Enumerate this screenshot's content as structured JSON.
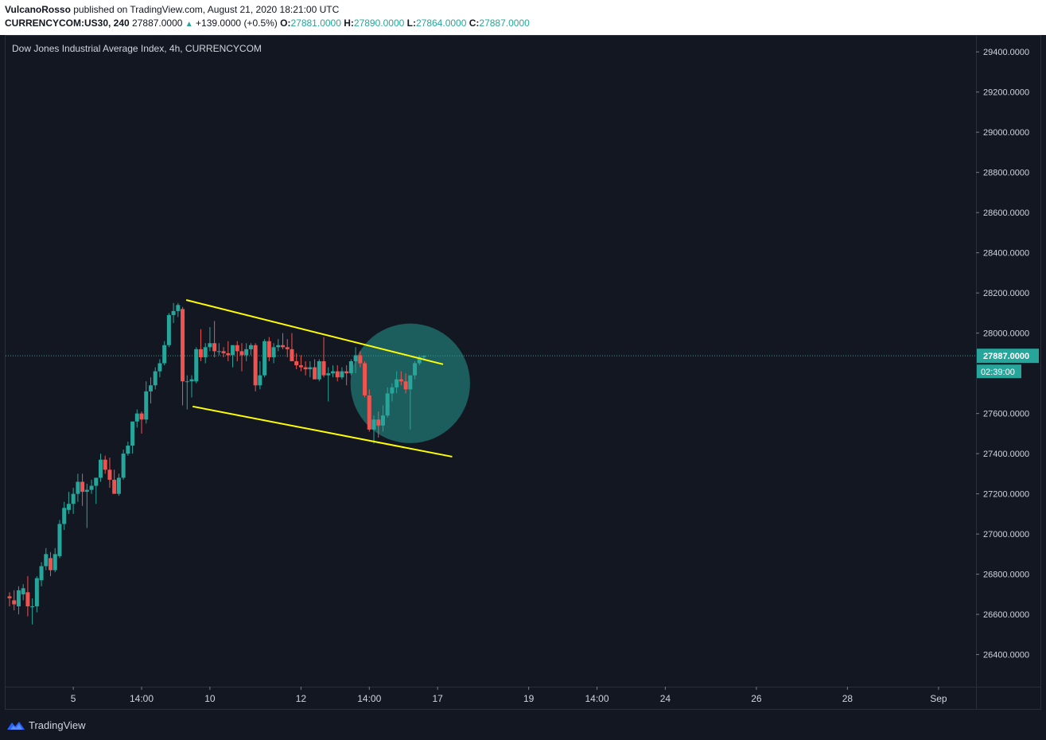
{
  "header": {
    "author": "VulcanoRosso",
    "published_text": "published on TradingView.com, August 21, 2020 18:21:00 UTC",
    "symbol_interval": "CURRENCYCOM:US30, 240",
    "last_value": "27887.0000",
    "change": "+139.0000 (+0.5%)",
    "o_label": "O:",
    "o_value": "27881.0000",
    "h_label": "H:",
    "h_value": "27890.0000",
    "l_label": "L:",
    "l_value": "27864.0000",
    "c_label": "C:",
    "c_value": "27887.0000"
  },
  "footer": {
    "brand": "TradingView"
  },
  "colors": {
    "background": "#131722",
    "up": "#26a69a",
    "down": "#ef5350",
    "trendline": "#ffff00",
    "highlight": "#26a69a",
    "price_line": "#26a69a"
  },
  "chart_data": {
    "type": "candlestick",
    "title": "Dow Jones Industrial Average Index, 4h, CURRENCYCOM",
    "interval": "4h",
    "ylim": [
      26240,
      29480
    ],
    "y_ticks": [
      26400,
      26600,
      26800,
      27000,
      27200,
      27400,
      27600,
      27800,
      28000,
      28200,
      28400,
      28600,
      28800,
      29000,
      29200,
      29400
    ],
    "y_tick_labels": [
      "26400.0000",
      "26600.0000",
      "26800.0000",
      "27000.0000",
      "27200.0000",
      "27400.0000",
      "27600.0000",
      "",
      "28000.0000",
      "28200.0000",
      "28400.0000",
      "28600.0000",
      "28800.0000",
      "29000.0000",
      "29200.0000",
      "29400.0000"
    ],
    "x_tick_labels": [
      {
        "bar": 14,
        "label": "5"
      },
      {
        "bar": 29,
        "label": "14:00"
      },
      {
        "bar": 44,
        "label": "10"
      },
      {
        "bar": 64,
        "label": "12"
      },
      {
        "bar": 79,
        "label": "14:00"
      },
      {
        "bar": 94,
        "label": "17"
      },
      {
        "bar": 114,
        "label": "19"
      },
      {
        "bar": 129,
        "label": "14:00"
      },
      {
        "bar": 144,
        "label": "24"
      },
      {
        "bar": 164,
        "label": "26"
      },
      {
        "bar": 184,
        "label": "28"
      },
      {
        "bar": 204,
        "label": "Sep"
      }
    ],
    "last_price": 27887.0,
    "last_price_label": "27887.0000",
    "countdown_label": "02:39:00",
    "candles": [
      [
        26690,
        26710,
        26640,
        26680
      ],
      [
        26670,
        26720,
        26620,
        26650
      ],
      [
        26640,
        26740,
        26600,
        26720
      ],
      [
        26700,
        26750,
        26670,
        26730
      ],
      [
        26710,
        26790,
        26590,
        26640
      ],
      [
        26640,
        26680,
        26550,
        26640
      ],
      [
        26640,
        26790,
        26610,
        26780
      ],
      [
        26770,
        26860,
        26740,
        26840
      ],
      [
        26840,
        26930,
        26820,
        26900
      ],
      [
        26880,
        26910,
        26790,
        26820
      ],
      [
        26820,
        26930,
        26810,
        26900
      ],
      [
        26890,
        27070,
        26880,
        27050
      ],
      [
        27050,
        27160,
        27020,
        27130
      ],
      [
        27120,
        27210,
        27100,
        27150
      ],
      [
        27150,
        27230,
        27100,
        27200
      ],
      [
        27200,
        27300,
        27160,
        27260
      ],
      [
        27260,
        27300,
        27140,
        27210
      ],
      [
        27210,
        27250,
        27030,
        27220
      ],
      [
        27220,
        27270,
        27200,
        27240
      ],
      [
        27240,
        27260,
        27150,
        27280
      ],
      [
        27280,
        27400,
        27260,
        27370
      ],
      [
        27370,
        27390,
        27300,
        27320
      ],
      [
        27320,
        27380,
        27230,
        27270
      ],
      [
        27270,
        27320,
        27210,
        27200
      ],
      [
        27200,
        27300,
        27190,
        27280
      ],
      [
        27280,
        27420,
        27270,
        27400
      ],
      [
        27400,
        27460,
        27390,
        27440
      ],
      [
        27440,
        27560,
        27400,
        27560
      ],
      [
        27560,
        27620,
        27530,
        27600
      ],
      [
        27600,
        27610,
        27500,
        27570
      ],
      [
        27570,
        27760,
        27550,
        27710
      ],
      [
        27710,
        27780,
        27650,
        27740
      ],
      [
        27740,
        27830,
        27720,
        27810
      ],
      [
        27810,
        27870,
        27780,
        27850
      ],
      [
        27850,
        27960,
        27840,
        27940
      ],
      [
        27940,
        28100,
        27930,
        28090
      ],
      [
        28090,
        28150,
        28050,
        28110
      ],
      [
        28110,
        28150,
        28080,
        28140
      ],
      [
        28120,
        28130,
        27640,
        27760
      ],
      [
        27760,
        27790,
        27620,
        27760
      ],
      [
        27760,
        27790,
        27680,
        27770
      ],
      [
        27760,
        27930,
        27750,
        27920
      ],
      [
        27920,
        28020,
        27860,
        27880
      ],
      [
        27880,
        27950,
        27850,
        27930
      ],
      [
        27930,
        28030,
        27910,
        27950
      ],
      [
        27950,
        28060,
        27880,
        27910
      ],
      [
        27910,
        27950,
        27890,
        27910
      ],
      [
        27910,
        27930,
        27880,
        27900
      ],
      [
        27900,
        27960,
        27860,
        27890
      ],
      [
        27890,
        27940,
        27830,
        27940
      ],
      [
        27940,
        27960,
        27860,
        27910
      ],
      [
        27910,
        27950,
        27810,
        27890
      ],
      [
        27890,
        27950,
        27860,
        27920
      ],
      [
        27920,
        27950,
        27890,
        27940
      ],
      [
        27940,
        27950,
        27710,
        27740
      ],
      [
        27740,
        27860,
        27720,
        27790
      ],
      [
        27790,
        27970,
        27780,
        27960
      ],
      [
        27960,
        27980,
        27860,
        27880
      ],
      [
        27880,
        27950,
        27850,
        27930
      ],
      [
        27930,
        27970,
        27910,
        27940
      ],
      [
        27940,
        28000,
        27920,
        27930
      ],
      [
        27930,
        27970,
        27880,
        27920
      ],
      [
        27920,
        28000,
        27870,
        27860
      ],
      [
        27860,
        27900,
        27820,
        27840
      ],
      [
        27840,
        27890,
        27810,
        27830
      ],
      [
        27830,
        27860,
        27790,
        27820
      ],
      [
        27820,
        27860,
        27780,
        27830
      ],
      [
        27830,
        27870,
        27790,
        27770
      ],
      [
        27770,
        27870,
        27760,
        27860
      ],
      [
        27860,
        27980,
        27780,
        27790
      ],
      [
        27790,
        27830,
        27660,
        27800
      ],
      [
        27800,
        27840,
        27780,
        27810
      ],
      [
        27810,
        27840,
        27760,
        27780
      ],
      [
        27780,
        27830,
        27770,
        27810
      ],
      [
        27810,
        27840,
        27740,
        27800
      ],
      [
        27800,
        27870,
        27790,
        27860
      ],
      [
        27860,
        27930,
        27800,
        27890
      ],
      [
        27890,
        27910,
        27830,
        27850
      ],
      [
        27850,
        27860,
        27680,
        27690
      ],
      [
        27690,
        27720,
        27510,
        27520
      ],
      [
        27520,
        27590,
        27450,
        27570
      ],
      [
        27570,
        27610,
        27480,
        27540
      ],
      [
        27540,
        27640,
        27510,
        27590
      ],
      [
        27590,
        27730,
        27580,
        27700
      ],
      [
        27700,
        27750,
        27660,
        27730
      ],
      [
        27730,
        27810,
        27700,
        27770
      ],
      [
        27770,
        27810,
        27740,
        27760
      ],
      [
        27760,
        27800,
        27700,
        27720
      ],
      [
        27720,
        27780,
        27520,
        27790
      ],
      [
        27790,
        27860,
        27770,
        27850
      ],
      [
        27850,
        27890,
        27840,
        27881
      ],
      [
        27881,
        27890,
        27864,
        27887
      ]
    ],
    "trendlines": [
      {
        "name": "upper-channel-line",
        "from": {
          "bar": 38.8,
          "price": 28165
        },
        "to": {
          "bar": 95.2,
          "price": 27845
        }
      },
      {
        "name": "lower-channel-line",
        "from": {
          "bar": 40.2,
          "price": 27635
        },
        "to": {
          "bar": 97.2,
          "price": 27385
        }
      }
    ],
    "highlight_circle": {
      "center": {
        "bar": 88.0,
        "price": 27750
      },
      "radius_bars": 7.5
    }
  }
}
